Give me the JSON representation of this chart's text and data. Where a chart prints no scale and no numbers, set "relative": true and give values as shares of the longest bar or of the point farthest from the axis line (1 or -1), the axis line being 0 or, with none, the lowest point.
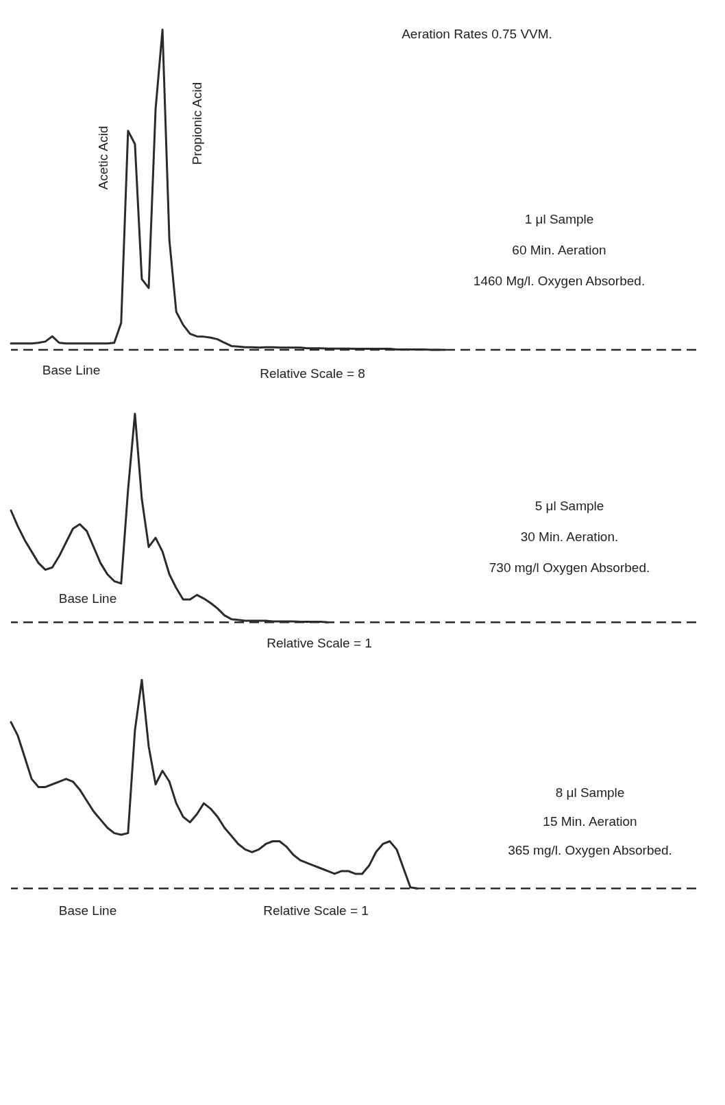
{
  "chart_data": [
    {
      "type": "line",
      "relative": true,
      "tick_labels": false,
      "categories": [
        null,
        null,
        null,
        null,
        null,
        null,
        null,
        null,
        null,
        null,
        null,
        null,
        null,
        null,
        null,
        null,
        null,
        null,
        null,
        null,
        null,
        null,
        null,
        null,
        null,
        null,
        null,
        null,
        null,
        null,
        null,
        null,
        null,
        null,
        null,
        null,
        null,
        null,
        null,
        null,
        null,
        null,
        null,
        null,
        null,
        null,
        null,
        null,
        null,
        null,
        null,
        null,
        null,
        null,
        null,
        null,
        null,
        null,
        null,
        null,
        null,
        null,
        null,
        null,
        null,
        null,
        null,
        null,
        null,
        null,
        null
      ],
      "series": [
        {
          "color": "#2b2b2b",
          "values": [
            0.02,
            0.02,
            0.02,
            0.02,
            0.022,
            0.026,
            0.042,
            0.022,
            0.02,
            0.02,
            0.02,
            0.02,
            0.02,
            0.02,
            0.02,
            0.022,
            0.084,
            0.684,
            0.643,
            0.221,
            0.193,
            0.752,
            1.0,
            0.343,
            0.119,
            0.078,
            0.05,
            0.042,
            0.041,
            0.038,
            0.033,
            0.022,
            0.012,
            0.01,
            0.008,
            0.008,
            0.007,
            0.008,
            0.008,
            0.007,
            0.007,
            0.007,
            0.007,
            0.005,
            0.005,
            0.005,
            0.004,
            0.004,
            0.004,
            0.004,
            0.003,
            0.003,
            0.003,
            0.003,
            0.003,
            0.003,
            0.001,
            0.001,
            0.001,
            0.001,
            0.001,
            0,
            0,
            0,
            null,
            null,
            null,
            null,
            null,
            null,
            null
          ]
        }
      ],
      "ref_lines": [
        {
          "axis": "y",
          "value": 0,
          "label": "Base Line",
          "line_style": "dashed",
          "color": "#2b2b2b"
        }
      ],
      "annotations": [
        "Aeration Rates 0.75 VVM.",
        "Acetic Acid",
        "Propionic Acid",
        "1 μl Sample",
        "60 Min. Aeration",
        "1460 Mg/l. Oxygen Absorbed.",
        "Relative Scale = 8"
      ]
    },
    {
      "type": "line",
      "relative": true,
      "tick_labels": false,
      "categories": [
        null,
        null,
        null,
        null,
        null,
        null,
        null,
        null,
        null,
        null,
        null,
        null,
        null,
        null,
        null,
        null,
        null,
        null,
        null,
        null,
        null,
        null,
        null,
        null,
        null,
        null,
        null,
        null,
        null,
        null,
        null,
        null,
        null,
        null,
        null,
        null,
        null,
        null,
        null,
        null,
        null,
        null,
        null,
        null,
        null,
        null,
        null,
        null,
        null,
        null,
        null,
        null,
        null,
        null,
        null,
        null,
        null,
        null,
        null,
        null,
        null,
        null,
        null,
        null,
        null,
        null,
        null,
        null,
        null,
        null,
        null
      ],
      "series": [
        {
          "color": "#2b2b2b",
          "values": [
            0.536,
            0.46,
            0.394,
            0.339,
            0.284,
            0.252,
            0.263,
            0.317,
            0.383,
            0.449,
            0.47,
            0.438,
            0.361,
            0.284,
            0.23,
            0.197,
            0.186,
            0.635,
            1.0,
            0.591,
            0.361,
            0.405,
            0.339,
            0.23,
            0.164,
            0.109,
            0.109,
            0.131,
            0.114,
            0.092,
            0.066,
            0.033,
            0.015,
            0.011,
            0.007,
            0.007,
            0.007,
            0.007,
            0.004,
            0.004,
            0.004,
            0.004,
            0.002,
            0.002,
            0.002,
            0.002,
            0,
            null,
            null,
            null,
            null,
            null,
            null,
            null,
            null,
            null,
            null,
            null,
            null,
            null,
            null,
            null,
            null,
            null,
            null,
            null,
            null,
            null,
            null,
            null,
            null
          ]
        }
      ],
      "ref_lines": [
        {
          "axis": "y",
          "value": 0,
          "label": "Base Line",
          "line_style": "dashed",
          "color": "#2b2b2b"
        }
      ],
      "annotations": [
        "5 μl Sample",
        "30 Min. Aeration.",
        "730 mg/l Oxygen Absorbed.",
        "Relative Scale = 1"
      ]
    },
    {
      "type": "line",
      "relative": true,
      "tick_labels": false,
      "categories": [
        null,
        null,
        null,
        null,
        null,
        null,
        null,
        null,
        null,
        null,
        null,
        null,
        null,
        null,
        null,
        null,
        null,
        null,
        null,
        null,
        null,
        null,
        null,
        null,
        null,
        null,
        null,
        null,
        null,
        null,
        null,
        null,
        null,
        null,
        null,
        null,
        null,
        null,
        null,
        null,
        null,
        null,
        null,
        null,
        null,
        null,
        null,
        null,
        null,
        null,
        null,
        null,
        null,
        null,
        null,
        null,
        null,
        null,
        null,
        null,
        null,
        null,
        null,
        null,
        null,
        null,
        null,
        null,
        null,
        null,
        null
      ],
      "series": [
        {
          "color": "#2b2b2b",
          "values": [
            0.797,
            0.732,
            0.629,
            0.525,
            0.486,
            0.486,
            0.499,
            0.512,
            0.525,
            0.512,
            0.473,
            0.421,
            0.369,
            0.33,
            0.291,
            0.265,
            0.257,
            0.265,
            0.758,
            1.0,
            0.681,
            0.499,
            0.564,
            0.512,
            0.408,
            0.343,
            0.317,
            0.356,
            0.408,
            0.382,
            0.343,
            0.291,
            0.252,
            0.213,
            0.187,
            0.174,
            0.187,
            0.213,
            0.226,
            0.226,
            0.2,
            0.161,
            0.135,
            0.122,
            0.109,
            0.096,
            0.083,
            0.07,
            0.083,
            0.083,
            0.07,
            0.07,
            0.109,
            0.174,
            0.213,
            0.226,
            0.187,
            0.096,
            0.005,
            0,
            null,
            null,
            null,
            null,
            null,
            null,
            null,
            null,
            null,
            null,
            null
          ]
        }
      ],
      "ref_lines": [
        {
          "axis": "y",
          "value": 0,
          "label": "Base Line",
          "line_style": "dashed",
          "color": "#2b2b2b"
        }
      ],
      "annotations": [
        "8 μl Sample",
        "15 Min. Aeration",
        "365 mg/l. Oxygen Absorbed.",
        "Relative Scale = 1"
      ]
    }
  ]
}
